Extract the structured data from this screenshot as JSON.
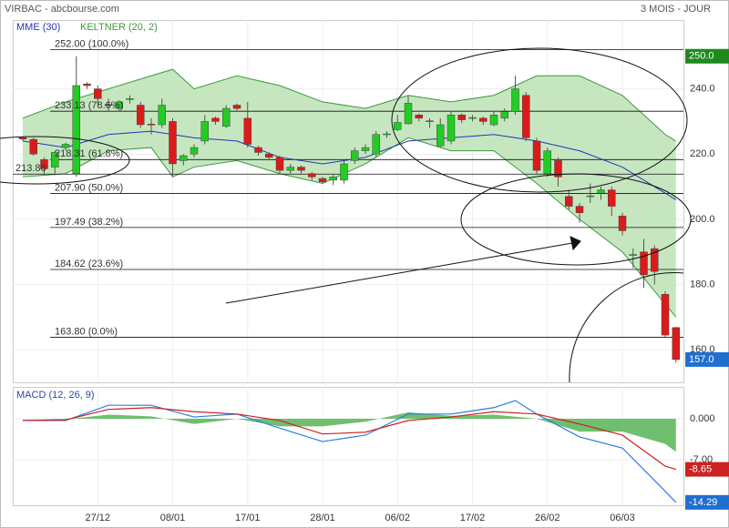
{
  "chart_data": {
    "type": "candlestick",
    "title": "VIRBAC - abcbourse.com",
    "period": "3 MOIS - JOUR",
    "categories": [
      null,
      null,
      null,
      null,
      null,
      null,
      null,
      "27/12",
      null,
      null,
      null,
      null,
      null,
      null,
      "08/01",
      null,
      null,
      null,
      null,
      null,
      null,
      "17/01",
      null,
      null,
      null,
      null,
      null,
      null,
      "28/01",
      null,
      null,
      null,
      null,
      null,
      null,
      "06/02",
      null,
      null,
      null,
      null,
      null,
      null,
      "17/02",
      null,
      null,
      null,
      null,
      null,
      null,
      "26/02",
      null,
      null,
      null,
      null,
      null,
      null,
      "06/03",
      null,
      null,
      null,
      null,
      null
    ],
    "candles": {
      "up_color": "#22cc22",
      "down_color": "#dd1a1a",
      "open": [
        225,
        224.5,
        218.3,
        216,
        222,
        214,
        241.5,
        240,
        235.2,
        234,
        236.8,
        235,
        229.2,
        229,
        230,
        218,
        220,
        224,
        231,
        228.5,
        235,
        231,
        222,
        220,
        219,
        215,
        216,
        214,
        212.5,
        212,
        212,
        218,
        221,
        220,
        226,
        227.5,
        229.3,
        232,
        230,
        222.5,
        224,
        232,
        231,
        231,
        229,
        231,
        233,
        238,
        224,
        214,
        218,
        207,
        204,
        207,
        208,
        209,
        201,
        189,
        190,
        191,
        177,
        166.8
      ],
      "high": [
        225.5,
        225,
        219,
        221,
        223.5,
        250,
        242,
        241,
        237,
        236.5,
        238,
        236,
        231,
        237,
        231,
        220,
        223,
        232,
        231.5,
        235,
        235.5,
        236,
        222.5,
        220.5,
        219.5,
        217,
        216.5,
        214.5,
        213,
        214,
        218,
        222,
        223,
        227,
        227,
        232,
        238,
        232.5,
        231,
        231,
        233,
        232.5,
        232,
        231.5,
        233,
        234,
        244,
        239,
        225,
        222,
        219,
        209,
        205,
        211,
        210,
        210,
        202,
        191,
        194,
        192,
        178,
        167
      ],
      "low": [
        224,
        219.5,
        214,
        213.5,
        221,
        213,
        240,
        235,
        233,
        233,
        235.5,
        228,
        226,
        228,
        213,
        216.5,
        219,
        223,
        229,
        228,
        233,
        222,
        219.5,
        218,
        214,
        214,
        214,
        212,
        211,
        210.5,
        211,
        217,
        220,
        219,
        225,
        227,
        229,
        230,
        228,
        222,
        223,
        229.5,
        230,
        229,
        228.5,
        230,
        232,
        224,
        214,
        213,
        210,
        203,
        199,
        205,
        206,
        201,
        195,
        185,
        179,
        180,
        164,
        156
      ],
      "close": [
        224.6,
        220,
        215.5,
        220.5,
        223,
        241,
        241,
        237,
        235,
        236,
        237,
        229,
        229,
        235,
        217,
        219.5,
        222,
        230,
        230,
        234,
        234,
        223,
        220.5,
        219,
        215,
        216,
        215,
        213,
        211.5,
        213,
        217,
        221,
        222,
        226,
        226.2,
        229.7,
        235.6,
        231,
        230.2,
        229,
        232,
        230.5,
        231.2,
        230,
        232,
        233,
        240,
        225,
        215,
        221,
        213,
        204,
        202,
        207.2,
        209,
        204,
        196.5,
        189.2,
        183,
        184,
        164.5,
        157
      ]
    },
    "ylim": [
      150,
      261.1
    ],
    "yticks": [
      {
        "value": 160,
        "label": "160.0"
      },
      {
        "value": 180,
        "label": "180.0"
      },
      {
        "value": 200,
        "label": "200.0"
      },
      {
        "value": 220,
        "label": "220.0"
      },
      {
        "value": 240,
        "label": "240.0"
      }
    ],
    "mme": {
      "name": "MME (30)",
      "color": "#2233bb",
      "x": [
        0,
        4,
        8,
        12,
        14,
        16,
        20,
        24,
        28,
        32,
        36,
        40,
        44,
        48,
        52,
        56,
        60,
        61
      ],
      "values": [
        224,
        222,
        226,
        227,
        226,
        225,
        224,
        219,
        217,
        219,
        224,
        225,
        226,
        224,
        221,
        216,
        208,
        206
      ]
    },
    "keltner": {
      "name": "KELTNER (20, 2)",
      "color": "#3a9a3a",
      "fill": "#c6e6c0",
      "x": [
        0,
        4,
        8,
        12,
        14,
        16,
        20,
        24,
        28,
        32,
        36,
        40,
        44,
        48,
        52,
        56,
        60,
        61
      ],
      "upper": [
        231,
        236,
        240,
        244,
        246,
        240,
        244,
        241,
        236,
        234,
        238,
        236,
        238,
        244,
        244,
        238,
        226,
        224
      ],
      "lower": [
        213,
        214,
        221,
        222,
        213,
        216,
        218,
        214,
        211,
        217,
        225,
        221,
        221,
        211,
        200,
        190,
        174,
        170
      ]
    },
    "fib_levels": [
      {
        "value": 252,
        "label": "252.00 (100.0%)"
      },
      {
        "value": 233.13,
        "label": "233.13 (78.6%)"
      },
      {
        "value": 218.31,
        "label": "218.31 (61.8%)"
      },
      {
        "value": 207.9,
        "label": "207.90 (50.0%)"
      },
      {
        "value": 197.49,
        "label": "197.49 (38.2%)"
      },
      {
        "value": 184.62,
        "label": "184.62 (23.6%)"
      },
      {
        "value": 163.8,
        "label": "163.80 (0.0%)"
      }
    ],
    "extra_level": {
      "value": 213.86,
      "label": "213.86"
    },
    "tags": [
      {
        "value": 250,
        "label": "250.0",
        "color": "#1e8a1e"
      },
      {
        "value": 157,
        "label": "157.0",
        "color": "#1f6fd0"
      }
    ],
    "macd": {
      "title": "MACD (12, 26, 9)",
      "ylim": [
        -14.78,
        5.44
      ],
      "yticks": [
        {
          "value": 0,
          "label": "0.000"
        },
        {
          "value": -7,
          "label": "-7.00"
        }
      ],
      "histogram": {
        "color": "#6fbf6f",
        "x": [
          0,
          4,
          8,
          12,
          16,
          20,
          24,
          28,
          32,
          36,
          40,
          44,
          48,
          52,
          56,
          60,
          61
        ],
        "values": [
          0,
          -0.1,
          0.7,
          0.4,
          -0.9,
          0,
          -1.3,
          -1.3,
          -0.5,
          1.1,
          0.5,
          0.7,
          0,
          -2.2,
          -2.2,
          -4.3,
          -5.65
        ]
      },
      "series": [
        {
          "color": "#2a7de1",
          "x": [
            0,
            4,
            8,
            12,
            16,
            20,
            24,
            28,
            32,
            36,
            40,
            44,
            46,
            48,
            52,
            56,
            60,
            61
          ],
          "values": [
            -0.3,
            -0.3,
            2.3,
            2.3,
            0.3,
            0.8,
            -1.6,
            -3.9,
            -2.8,
            0.8,
            0.8,
            1.9,
            3.1,
            0.8,
            -3.1,
            -5,
            -12.4,
            -14.29
          ]
        },
        {
          "color": "#cc2222",
          "x": [
            0,
            4,
            8,
            12,
            16,
            20,
            24,
            28,
            32,
            36,
            40,
            44,
            48,
            52,
            56,
            60,
            61
          ],
          "values": [
            -0.3,
            -0.2,
            1.6,
            1.9,
            1.2,
            0.8,
            -0.3,
            -2.6,
            -2.3,
            -0.3,
            0.3,
            1.2,
            0.8,
            -0.9,
            -2.8,
            -8.1,
            -8.65
          ]
        }
      ],
      "tags": [
        {
          "value": -8.65,
          "label": "-8.65",
          "color": "#cc2222"
        },
        {
          "value": -14.29,
          "label": "-14.29",
          "color": "#1f6fd0"
        }
      ]
    }
  }
}
